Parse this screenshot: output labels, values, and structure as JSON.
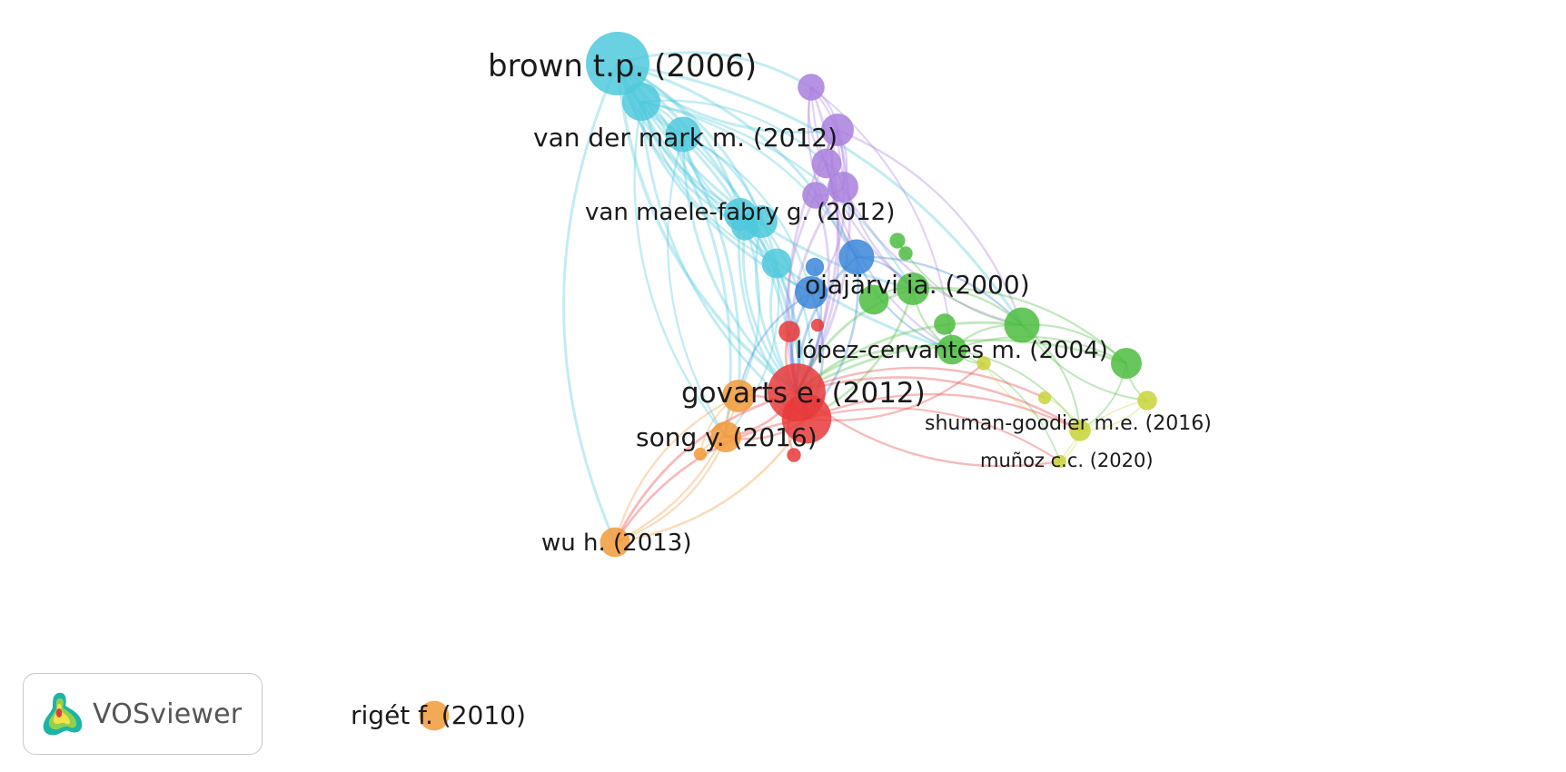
{
  "network": {
    "clusters": {
      "red": "#e8393a",
      "green": "#4dbd3f",
      "blue": "#3a86d9",
      "yellow": "#c8d43a",
      "purple": "#a97fdd",
      "cyan": "#4fc9dc",
      "orange": "#f29a38"
    },
    "nodes": [
      {
        "id": "brown",
        "label": "brown t.p. (2006)",
        "cluster": "cyan",
        "weight": 1.0
      },
      {
        "id": "cyan2",
        "label": "",
        "cluster": "cyan",
        "weight": 0.55
      },
      {
        "id": "vandermark",
        "label": "van der mark m. (2012)",
        "cluster": "cyan",
        "weight": 0.5
      },
      {
        "id": "vanmaele",
        "label": "van maele-fabry g. (2012)",
        "cluster": "cyan",
        "weight": 0.45
      },
      {
        "id": "cyan5",
        "label": "",
        "cluster": "cyan",
        "weight": 0.45
      },
      {
        "id": "cyan6",
        "label": "",
        "cluster": "cyan",
        "weight": 0.4
      },
      {
        "id": "cyan7",
        "label": "",
        "cluster": "cyan",
        "weight": 0.35
      },
      {
        "id": "p1",
        "label": "",
        "cluster": "purple",
        "weight": 0.35
      },
      {
        "id": "p2",
        "label": "",
        "cluster": "purple",
        "weight": 0.45
      },
      {
        "id": "p3",
        "label": "",
        "cluster": "purple",
        "weight": 0.4
      },
      {
        "id": "p4",
        "label": "",
        "cluster": "purple",
        "weight": 0.42
      },
      {
        "id": "p5",
        "label": "",
        "cluster": "purple",
        "weight": 0.35
      },
      {
        "id": "b1",
        "label": "",
        "cluster": "blue",
        "weight": 0.5
      },
      {
        "id": "b2",
        "label": "",
        "cluster": "blue",
        "weight": 0.45
      },
      {
        "id": "b3",
        "label": "",
        "cluster": "blue",
        "weight": 0.2
      },
      {
        "id": "ojajarvi",
        "label": "ojajärvi ia. (2000)",
        "cluster": "green",
        "weight": 0.45
      },
      {
        "id": "g2",
        "label": "",
        "cluster": "green",
        "weight": 0.4
      },
      {
        "id": "g3",
        "label": "",
        "cluster": "green",
        "weight": 0.5
      },
      {
        "id": "lopez",
        "label": "lópez-cervantes m. (2004)",
        "cluster": "green",
        "weight": 0.4
      },
      {
        "id": "g5",
        "label": "",
        "cluster": "green",
        "weight": 0.42
      },
      {
        "id": "g6",
        "label": "",
        "cluster": "green",
        "weight": 0.25
      },
      {
        "id": "g7",
        "label": "",
        "cluster": "green",
        "weight": 0.15
      },
      {
        "id": "g8",
        "label": "",
        "cluster": "green",
        "weight": 0.12
      },
      {
        "id": "govarts",
        "label": "govarts e. (2012)",
        "cluster": "red",
        "weight": 0.9
      },
      {
        "id": "r2",
        "label": "",
        "cluster": "red",
        "weight": 0.75
      },
      {
        "id": "r3",
        "label": "",
        "cluster": "red",
        "weight": 0.25
      },
      {
        "id": "r4",
        "label": "",
        "cluster": "red",
        "weight": 0.12
      },
      {
        "id": "r5",
        "label": "",
        "cluster": "red",
        "weight": 0.1
      },
      {
        "id": "o1",
        "label": "",
        "cluster": "orange",
        "weight": 0.45
      },
      {
        "id": "song",
        "label": "song y. (2016)",
        "cluster": "orange",
        "weight": 0.42
      },
      {
        "id": "wu",
        "label": "wu h. (2013)",
        "cluster": "orange",
        "weight": 0.4
      },
      {
        "id": "riget",
        "label": "rigét f. (2010)",
        "cluster": "orange",
        "weight": 0.4
      },
      {
        "id": "o5",
        "label": "",
        "cluster": "orange",
        "weight": 0.1
      },
      {
        "id": "shuman",
        "label": "shuman-goodier m.e. (2016)",
        "cluster": "yellow",
        "weight": 0.25
      },
      {
        "id": "munoz",
        "label": "muñoz c.c. (2020)",
        "cluster": "yellow",
        "weight": 0.1
      },
      {
        "id": "y3",
        "label": "",
        "cluster": "yellow",
        "weight": 0.22
      },
      {
        "id": "y4",
        "label": "",
        "cluster": "yellow",
        "weight": 0.12
      },
      {
        "id": "y5",
        "label": "",
        "cluster": "yellow",
        "weight": 0.1
      }
    ],
    "links": [
      [
        "brown",
        "vandermark"
      ],
      [
        "brown",
        "vanmaele"
      ],
      [
        "brown",
        "cyan5"
      ],
      [
        "brown",
        "cyan6"
      ],
      [
        "brown",
        "cyan7"
      ],
      [
        "brown",
        "p1"
      ],
      [
        "brown",
        "p2"
      ],
      [
        "brown",
        "b1"
      ],
      [
        "brown",
        "govarts"
      ],
      [
        "brown",
        "r2"
      ],
      [
        "brown",
        "ojajarvi"
      ],
      [
        "brown",
        "g3"
      ],
      [
        "brown",
        "lopez"
      ],
      [
        "brown",
        "song"
      ],
      [
        "brown",
        "wu"
      ],
      [
        "brown",
        "o1"
      ],
      [
        "brown",
        "b2"
      ],
      [
        "cyan2",
        "vandermark"
      ],
      [
        "cyan2",
        "vanmaele"
      ],
      [
        "cyan2",
        "govarts"
      ],
      [
        "cyan2",
        "r2"
      ],
      [
        "cyan2",
        "b1"
      ],
      [
        "cyan2",
        "cyan6"
      ],
      [
        "cyan2",
        "ojajarvi"
      ],
      [
        "cyan2",
        "song"
      ],
      [
        "cyan2",
        "p3"
      ],
      [
        "vandermark",
        "vanmaele"
      ],
      [
        "vandermark",
        "cyan5"
      ],
      [
        "vandermark",
        "govarts"
      ],
      [
        "vandermark",
        "r2"
      ],
      [
        "vandermark",
        "cyan7"
      ],
      [
        "vandermark",
        "b2"
      ],
      [
        "vandermark",
        "song"
      ],
      [
        "vanmaele",
        "govarts"
      ],
      [
        "vanmaele",
        "r2"
      ],
      [
        "vanmaele",
        "cyan7"
      ],
      [
        "vanmaele",
        "b2"
      ],
      [
        "vanmaele",
        "o1"
      ],
      [
        "cyan5",
        "govarts"
      ],
      [
        "cyan5",
        "r2"
      ],
      [
        "cyan6",
        "govarts"
      ],
      [
        "cyan6",
        "song"
      ],
      [
        "cyan7",
        "govarts"
      ],
      [
        "p1",
        "p2"
      ],
      [
        "p1",
        "p3"
      ],
      [
        "p1",
        "p4"
      ],
      [
        "p1",
        "b1"
      ],
      [
        "p1",
        "govarts"
      ],
      [
        "p1",
        "ojajarvi"
      ],
      [
        "p1",
        "lopez"
      ],
      [
        "p2",
        "p3"
      ],
      [
        "p2",
        "p4"
      ],
      [
        "p2",
        "b1"
      ],
      [
        "p2",
        "govarts"
      ],
      [
        "p2",
        "r2"
      ],
      [
        "p2",
        "g3"
      ],
      [
        "p2",
        "ojajarvi"
      ],
      [
        "p3",
        "p4"
      ],
      [
        "p3",
        "p5"
      ],
      [
        "p3",
        "govarts"
      ],
      [
        "p3",
        "lopez"
      ],
      [
        "p4",
        "p5"
      ],
      [
        "p4",
        "govarts"
      ],
      [
        "p4",
        "b2"
      ],
      [
        "p4",
        "g3"
      ],
      [
        "p5",
        "govarts"
      ],
      [
        "p5",
        "r2"
      ],
      [
        "b1",
        "ojajarvi"
      ],
      [
        "b1",
        "govarts"
      ],
      [
        "b1",
        "r2"
      ],
      [
        "b1",
        "lopez"
      ],
      [
        "b1",
        "g3"
      ],
      [
        "b2",
        "govarts"
      ],
      [
        "b2",
        "r2"
      ],
      [
        "b2",
        "o1"
      ],
      [
        "b3",
        "govarts"
      ],
      [
        "ojajarvi",
        "g2"
      ],
      [
        "ojajarvi",
        "g3"
      ],
      [
        "ojajarvi",
        "lopez"
      ],
      [
        "ojajarvi",
        "g5"
      ],
      [
        "ojajarvi",
        "govarts"
      ],
      [
        "ojajarvi",
        "r2"
      ],
      [
        "g3",
        "lopez"
      ],
      [
        "g3",
        "g5"
      ],
      [
        "g3",
        "govarts"
      ],
      [
        "g3",
        "shuman"
      ],
      [
        "g3",
        "y3"
      ],
      [
        "lopez",
        "g5"
      ],
      [
        "lopez",
        "govarts"
      ],
      [
        "lopez",
        "shuman"
      ],
      [
        "lopez",
        "y4"
      ],
      [
        "lopez",
        "munoz"
      ],
      [
        "g5",
        "y3"
      ],
      [
        "g5",
        "shuman"
      ],
      [
        "g5",
        "govarts"
      ],
      [
        "g6",
        "lopez"
      ],
      [
        "g7",
        "g3"
      ],
      [
        "govarts",
        "r2"
      ],
      [
        "govarts",
        "o1"
      ],
      [
        "govarts",
        "song"
      ],
      [
        "govarts",
        "wu"
      ],
      [
        "govarts",
        "shuman"
      ],
      [
        "govarts",
        "munoz"
      ],
      [
        "govarts",
        "y5"
      ],
      [
        "r2",
        "o1"
      ],
      [
        "r2",
        "song"
      ],
      [
        "r2",
        "wu"
      ],
      [
        "r2",
        "shuman"
      ],
      [
        "r2",
        "y4"
      ],
      [
        "r2",
        "munoz"
      ],
      [
        "r3",
        "govarts"
      ],
      [
        "r4",
        "govarts"
      ],
      [
        "o1",
        "song"
      ],
      [
        "o1",
        "wu"
      ],
      [
        "o1",
        "o5"
      ],
      [
        "song",
        "wu"
      ],
      [
        "song",
        "o5"
      ],
      [
        "shuman",
        "munoz"
      ],
      [
        "shuman",
        "y3"
      ],
      [
        "shuman",
        "y4"
      ],
      [
        "y3",
        "munoz"
      ],
      [
        "y5",
        "shuman"
      ],
      [
        "wu",
        "r2"
      ],
      [
        "wu",
        "o1"
      ]
    ]
  },
  "logo": {
    "text": "VOSviewer",
    "icon": "vosviewer-logo-icon"
  }
}
